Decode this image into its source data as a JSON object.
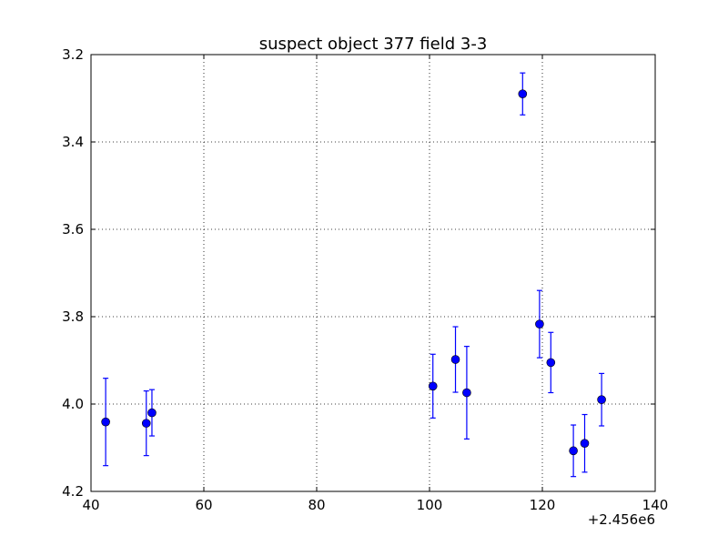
{
  "chart_data": {
    "type": "scatter",
    "title": "suspect object 377 field 3-3",
    "xlabel": "",
    "ylabel": "",
    "x_offset_label": "+2.456e6",
    "xlim": [
      40,
      140
    ],
    "ylim": [
      3.2,
      4.2
    ],
    "y_inverted": true,
    "grid": true,
    "x_ticks": [
      40,
      60,
      80,
      100,
      120,
      140
    ],
    "x_tick_labels": [
      "40",
      "60",
      "80",
      "100",
      "120",
      "140"
    ],
    "y_ticks": [
      3.2,
      3.4,
      3.6,
      3.8,
      4.0,
      4.2
    ],
    "y_tick_labels": [
      "3.2",
      "3.4",
      "3.6",
      "3.8",
      "4.0",
      "4.2"
    ],
    "color": "#0000ff",
    "points": [
      {
        "x": 42.6,
        "y": 4.041,
        "err": 0.1
      },
      {
        "x": 49.8,
        "y": 4.044,
        "err": 0.074
      },
      {
        "x": 50.8,
        "y": 4.02,
        "err": 0.053
      },
      {
        "x": 100.6,
        "y": 3.959,
        "err": 0.073
      },
      {
        "x": 104.6,
        "y": 3.898,
        "err": 0.075
      },
      {
        "x": 106.6,
        "y": 3.974,
        "err": 0.106
      },
      {
        "x": 116.5,
        "y": 3.29,
        "err": 0.048
      },
      {
        "x": 119.5,
        "y": 3.817,
        "err": 0.077
      },
      {
        "x": 121.5,
        "y": 3.905,
        "err": 0.069
      },
      {
        "x": 125.5,
        "y": 4.107,
        "err": 0.059
      },
      {
        "x": 127.5,
        "y": 4.09,
        "err": 0.066
      },
      {
        "x": 130.5,
        "y": 3.99,
        "err": 0.06
      }
    ]
  }
}
